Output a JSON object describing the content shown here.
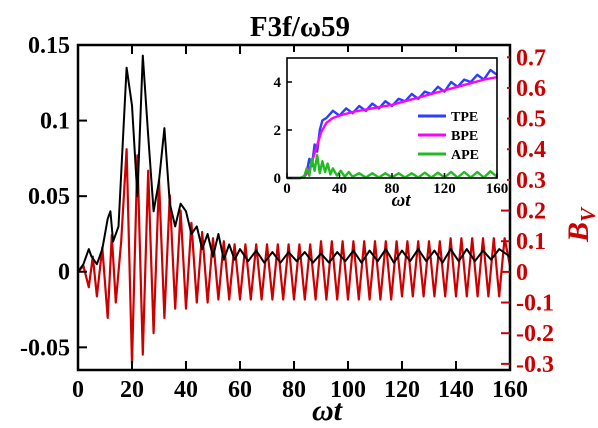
{
  "title": "F3f/ω59",
  "colors": {
    "primary": "#000000",
    "secondary": "#cc0000",
    "tpe": "#2a3fff",
    "bpe": "#ff00ff",
    "ape": "#22bb22"
  },
  "chart_data": [
    {
      "type": "line",
      "title": "F3f/ω59",
      "xlabel": "ωt",
      "ylabel_left": "",
      "ylabel_right": "B_V",
      "xlim": [
        0,
        160
      ],
      "ylim_left": [
        -0.065,
        0.15
      ],
      "ylim_right": [
        -0.32,
        0.74
      ],
      "xticks": [
        0,
        20,
        40,
        60,
        80,
        100,
        120,
        140,
        160
      ],
      "yticks_left": [
        -0.05,
        0,
        0.05,
        0.1,
        0.15
      ],
      "yticks_left_labels": [
        "-0.05",
        "0",
        "0.05",
        "0.1",
        "0.15"
      ],
      "yticks_right": [
        -0.3,
        -0.2,
        -0.1,
        0,
        0.1,
        0.2,
        0.3,
        0.4,
        0.5,
        0.6,
        0.7
      ],
      "yticks_right_labels": [
        "-0.3",
        "-0.2",
        "-0.1",
        "0",
        "0.1",
        "0.2",
        "0.3",
        "0.4",
        "0.5",
        "0.6",
        "0.7"
      ],
      "grid": false,
      "series": [
        {
          "axis": "left",
          "color": "#000000",
          "x": [
            0,
            2,
            4,
            5,
            7,
            9,
            11,
            12,
            13,
            15,
            17,
            18,
            20,
            22,
            24,
            26,
            28,
            30,
            32,
            34,
            36,
            38,
            40,
            42,
            44,
            46,
            48,
            50,
            52,
            54,
            56,
            58,
            60,
            63,
            66,
            69,
            72,
            75,
            78,
            81,
            84,
            87,
            90,
            93,
            96,
            99,
            102,
            105,
            108,
            111,
            114,
            117,
            120,
            123,
            126,
            129,
            132,
            135,
            138,
            141,
            144,
            147,
            150,
            153,
            156,
            160
          ],
          "y": [
            0,
            0.005,
            0.015,
            0.01,
            0.005,
            0.015,
            0.035,
            0.04,
            0.02,
            0.03,
            0.1,
            0.135,
            0.11,
            0.05,
            0.143,
            0.09,
            0.04,
            0.06,
            0.095,
            0.045,
            0.03,
            0.045,
            0.04,
            0.025,
            0.03,
            0.015,
            0.025,
            0.01,
            0.025,
            0.008,
            0.018,
            0.008,
            0.015,
            0.007,
            0.014,
            0.006,
            0.013,
            0.006,
            0.013,
            0.007,
            0.013,
            0.006,
            0.012,
            0.006,
            0.013,
            0.007,
            0.014,
            0.006,
            0.014,
            0.007,
            0.015,
            0.006,
            0.014,
            0.007,
            0.015,
            0.007,
            0.014,
            0.006,
            0.015,
            0.007,
            0.015,
            0.007,
            0.014,
            0.008,
            0.015,
            0.01
          ]
        },
        {
          "axis": "right",
          "color": "#cc0000",
          "x": [
            0,
            2,
            4,
            5.5,
            7,
            9,
            11,
            12.5,
            14,
            16,
            18,
            20,
            22,
            24,
            26,
            28,
            30,
            32,
            34,
            36,
            38,
            40,
            42,
            44,
            46,
            48,
            50,
            52,
            54,
            56,
            58,
            60,
            62,
            64,
            66,
            68,
            70,
            72,
            74,
            76,
            78,
            80,
            82,
            84,
            86,
            88,
            90,
            92,
            94,
            96,
            98,
            100,
            102,
            104,
            106,
            108,
            110,
            112,
            114,
            116,
            118,
            120,
            122,
            124,
            126,
            128,
            130,
            132,
            134,
            136,
            138,
            140,
            142,
            144,
            146,
            148,
            150,
            152,
            154,
            156,
            158,
            160
          ],
          "y": [
            0,
            0.02,
            -0.05,
            0.05,
            -0.08,
            0.08,
            -0.15,
            0.12,
            -0.1,
            0.1,
            0.4,
            -0.3,
            0.38,
            -0.27,
            0.33,
            -0.2,
            0.3,
            -0.15,
            0.25,
            -0.12,
            0.2,
            -0.12,
            0.16,
            -0.1,
            0.13,
            -0.1,
            0.11,
            -0.09,
            0.1,
            -0.09,
            0.09,
            -0.09,
            0.09,
            -0.09,
            0.09,
            -0.09,
            0.09,
            -0.09,
            0.09,
            -0.09,
            0.09,
            -0.09,
            0.09,
            -0.09,
            0.09,
            -0.09,
            0.1,
            -0.09,
            0.1,
            -0.09,
            0.1,
            -0.09,
            0.1,
            -0.09,
            0.1,
            -0.09,
            0.1,
            -0.09,
            0.1,
            -0.09,
            0.1,
            -0.08,
            0.1,
            -0.08,
            0.1,
            -0.08,
            0.1,
            -0.08,
            0.1,
            -0.08,
            0.11,
            -0.08,
            0.11,
            -0.08,
            0.11,
            -0.08,
            0.11,
            -0.08,
            0.11,
            -0.08,
            0.11,
            0.02
          ]
        }
      ]
    },
    {
      "type": "line",
      "title": "",
      "xlabel": "ωt",
      "ylabel": "",
      "xlim": [
        0,
        160
      ],
      "ylim": [
        0,
        5
      ],
      "xticks": [
        0,
        40,
        80,
        120,
        160
      ],
      "yticks": [
        0,
        2,
        4
      ],
      "grid": false,
      "legend": "right",
      "series": [
        {
          "name": "TPE",
          "color": "#2a3fff",
          "x": [
            0,
            10,
            13,
            15,
            17,
            19,
            21,
            23,
            25,
            27,
            30,
            35,
            40,
            45,
            50,
            55,
            60,
            65,
            70,
            75,
            80,
            85,
            90,
            95,
            100,
            105,
            110,
            115,
            120,
            125,
            130,
            135,
            140,
            145,
            150,
            155,
            160
          ],
          "y": [
            0,
            0,
            0.05,
            0.25,
            0.8,
            0.5,
            1.4,
            1.1,
            2.0,
            2.4,
            2.5,
            2.8,
            2.6,
            2.9,
            2.7,
            3.0,
            2.8,
            3.1,
            2.9,
            3.2,
            3.0,
            3.3,
            3.2,
            3.5,
            3.3,
            3.6,
            3.5,
            3.8,
            3.6,
            4.0,
            3.8,
            4.1,
            4.0,
            4.3,
            4.1,
            4.5,
            4.3
          ]
        },
        {
          "name": "BPE",
          "color": "#ff00ff",
          "x": [
            0,
            10,
            14,
            18,
            22,
            26,
            30,
            35,
            40,
            50,
            60,
            70,
            80,
            90,
            100,
            110,
            120,
            130,
            140,
            150,
            160
          ],
          "y": [
            0,
            0,
            0.1,
            0.5,
            1.2,
            1.9,
            2.3,
            2.5,
            2.6,
            2.75,
            2.85,
            2.95,
            3.05,
            3.2,
            3.35,
            3.5,
            3.65,
            3.8,
            3.95,
            4.1,
            4.2
          ]
        },
        {
          "name": "APE",
          "color": "#22bb22",
          "x": [
            0,
            10,
            13,
            15,
            17,
            19,
            21,
            23,
            25,
            27,
            29,
            31,
            33,
            35,
            38,
            41,
            44,
            47,
            50,
            55,
            60,
            65,
            70,
            75,
            80,
            85,
            90,
            95,
            100,
            105,
            110,
            115,
            120,
            125,
            130,
            135,
            140,
            145,
            150,
            155,
            160
          ],
          "y": [
            0,
            0,
            0.05,
            0.4,
            0.1,
            0.8,
            0.3,
            0.95,
            0.2,
            0.7,
            0.25,
            0.6,
            0.15,
            0.4,
            0.1,
            0.3,
            0.05,
            0.25,
            0.05,
            0.2,
            0.02,
            0.2,
            0.02,
            0.2,
            0.02,
            0.2,
            0.02,
            0.2,
            0.02,
            0.22,
            0.02,
            0.22,
            0.02,
            0.25,
            0.02,
            0.25,
            0.02,
            0.25,
            0.02,
            0.28,
            0.05
          ]
        }
      ]
    }
  ]
}
